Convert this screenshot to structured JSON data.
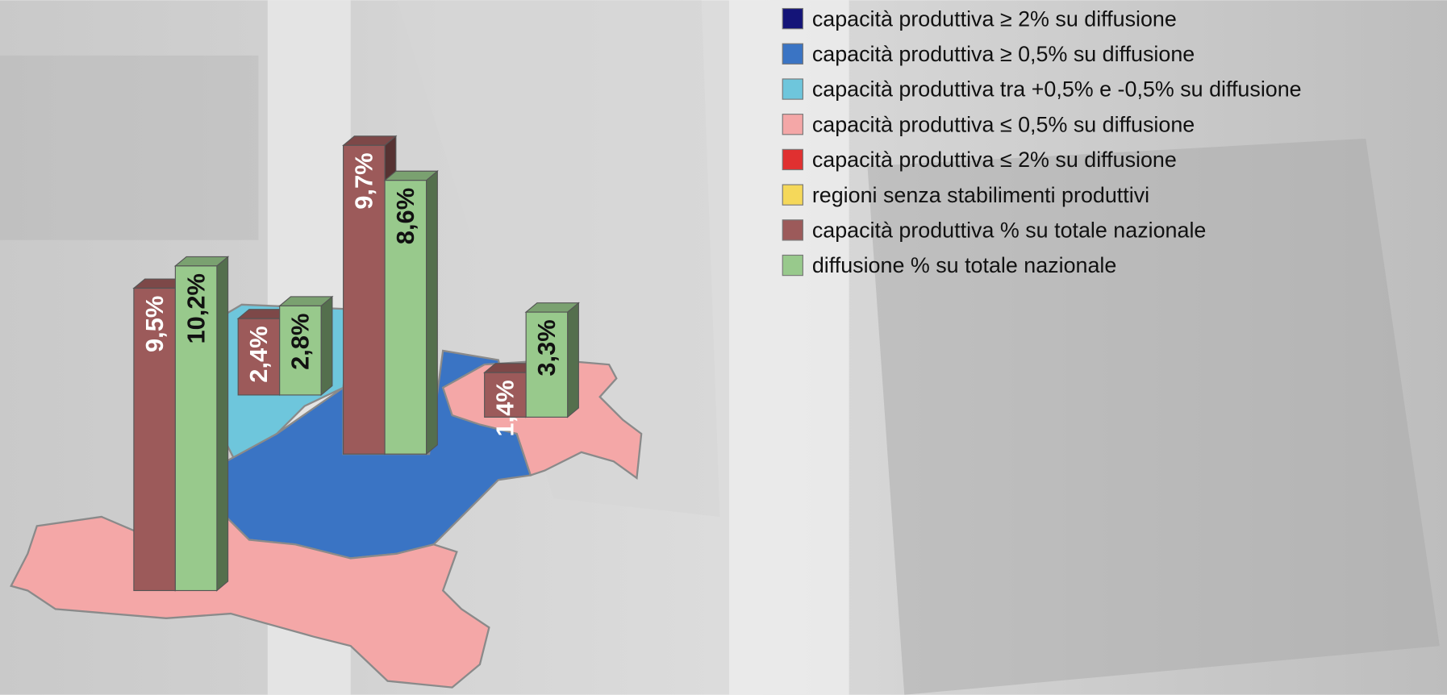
{
  "chart_data": {
    "type": "bar",
    "categories": [
      null,
      null,
      null,
      null
    ],
    "series": [
      {
        "name": "capacità produttiva % su totale nazionale",
        "color": "#9c5a5a",
        "values": [
          9.5,
          2.4,
          9.7,
          1.4
        ],
        "value_labels": [
          "9,5%",
          "2,4%",
          "9,7%",
          "1,4%"
        ]
      },
      {
        "name": "diffusione % su totale nazionale",
        "color": "#98c98c",
        "values": [
          10.2,
          2.8,
          8.6,
          3.3
        ],
        "value_labels": [
          "10,2%",
          "2,8%",
          "8,6%",
          "3,3%"
        ]
      }
    ],
    "map_legend": [
      {
        "name": "capacità produttiva ≥ 2% su diffusione",
        "color": "#141478"
      },
      {
        "name": "capacità produttiva ≥ 0,5% su diffusione",
        "color": "#3a74c4"
      },
      {
        "name": "capacità produttiva tra +0,5% e -0,5% su diffusione",
        "color": "#6ec6dc"
      },
      {
        "name": "capacità produttiva ≤ 0,5% su diffusione",
        "color": "#f4a7a7"
      },
      {
        "name": "capacità produttiva ≤ 2% su diffusione",
        "color": "#e03030"
      },
      {
        "name": "regioni senza stabilimenti produttivi",
        "color": "#f5d85a"
      }
    ]
  }
}
